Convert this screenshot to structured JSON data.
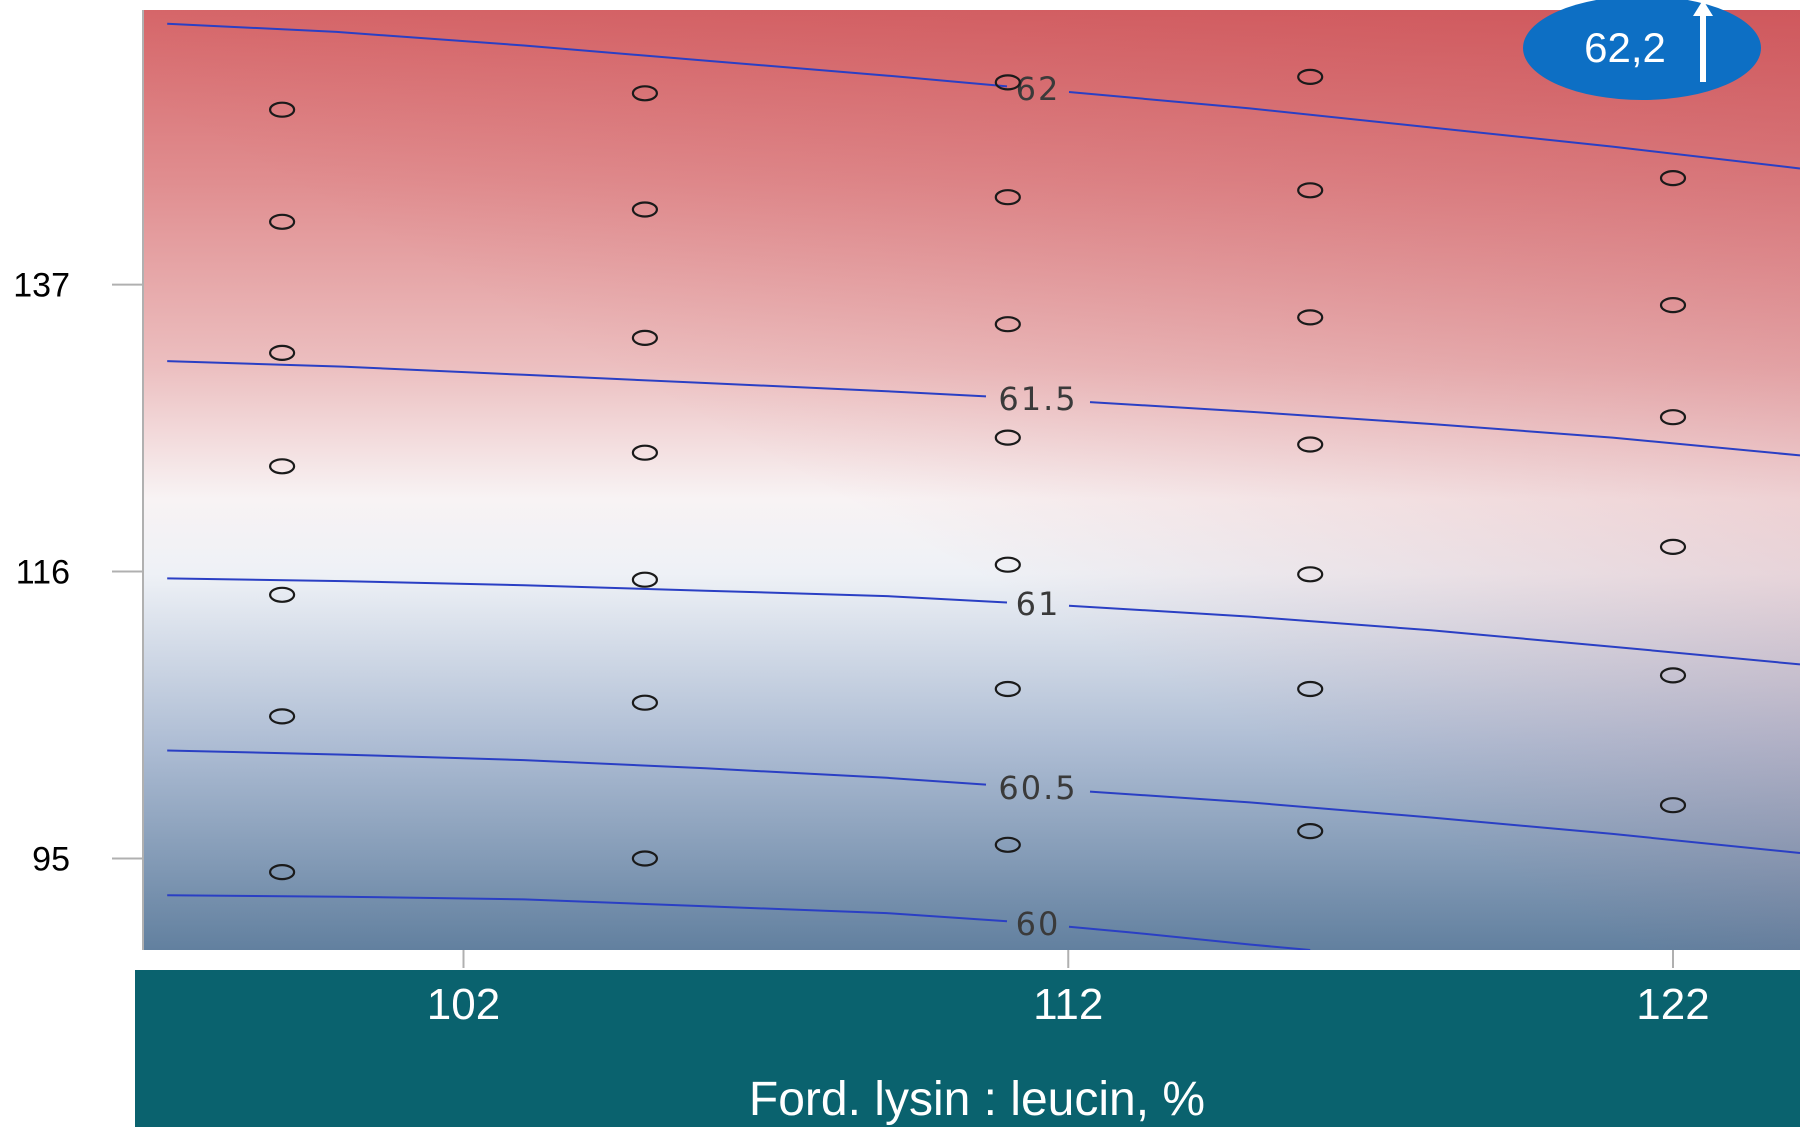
{
  "chart_data": {
    "type": "contour",
    "xlabel": "Ford. lysin : leucin, %",
    "ylabel": "",
    "x_ticks": [
      102,
      112,
      122
    ],
    "y_ticks": [
      95,
      116,
      137
    ],
    "xlim": [
      96.7,
      124.1
    ],
    "ylim": [
      88.3,
      157.1
    ],
    "color_scale": {
      "low": "#5b79a6",
      "mid": "#ffffff",
      "high": "#d46164"
    },
    "contour_color": "#2a3fc4",
    "contours": [
      {
        "level": "62",
        "points": [
          [
            97.1,
            156.1
          ],
          [
            99.9,
            155.5
          ],
          [
            103.0,
            154.5
          ],
          [
            106.0,
            153.4
          ],
          [
            109.0,
            152.3
          ],
          [
            112.0,
            151.1
          ],
          [
            115.0,
            149.9
          ],
          [
            118.0,
            148.5
          ],
          [
            121.0,
            147.1
          ],
          [
            124.1,
            145.5
          ]
        ]
      },
      {
        "level": "61.5",
        "points": [
          [
            97.1,
            131.4
          ],
          [
            100.0,
            131.0
          ],
          [
            103.0,
            130.4
          ],
          [
            106.0,
            129.8
          ],
          [
            109.0,
            129.2
          ],
          [
            112.0,
            128.5
          ],
          [
            115.0,
            127.7
          ],
          [
            118.0,
            126.8
          ],
          [
            121.0,
            125.8
          ],
          [
            124.1,
            124.5
          ]
        ]
      },
      {
        "level": "61",
        "points": [
          [
            97.1,
            115.5
          ],
          [
            100.0,
            115.3
          ],
          [
            103.0,
            115.0
          ],
          [
            106.0,
            114.6
          ],
          [
            109.0,
            114.2
          ],
          [
            112.0,
            113.5
          ],
          [
            115.0,
            112.7
          ],
          [
            118.0,
            111.7
          ],
          [
            121.0,
            110.5
          ],
          [
            124.1,
            109.2
          ]
        ]
      },
      {
        "level": "60.5",
        "points": [
          [
            97.1,
            102.9
          ],
          [
            100.0,
            102.6
          ],
          [
            103.0,
            102.2
          ],
          [
            106.0,
            101.6
          ],
          [
            109.0,
            100.9
          ],
          [
            112.0,
            100.0
          ],
          [
            115.0,
            99.1
          ],
          [
            118.0,
            98.0
          ],
          [
            121.0,
            96.8
          ],
          [
            124.1,
            95.4
          ]
        ]
      },
      {
        "level": "60",
        "points": [
          [
            97.1,
            92.3
          ],
          [
            100.0,
            92.2
          ],
          [
            103.0,
            92.0
          ],
          [
            106.0,
            91.5
          ],
          [
            109.0,
            91.0
          ],
          [
            111.0,
            90.4
          ],
          [
            113.0,
            89.6
          ],
          [
            115.0,
            88.7
          ],
          [
            116.0,
            88.3
          ]
        ]
      }
    ],
    "points": [
      [
        99.0,
        149.8
      ],
      [
        99.0,
        141.6
      ],
      [
        99.0,
        132.0
      ],
      [
        99.0,
        123.7
      ],
      [
        99.0,
        114.3
      ],
      [
        99.0,
        105.4
      ],
      [
        99.0,
        94.0
      ],
      [
        105.0,
        151.0
      ],
      [
        105.0,
        142.5
      ],
      [
        105.0,
        133.1
      ],
      [
        105.0,
        124.7
      ],
      [
        105.0,
        115.4
      ],
      [
        105.0,
        106.4
      ],
      [
        105.0,
        95.0
      ],
      [
        111.0,
        151.8
      ],
      [
        111.0,
        143.4
      ],
      [
        111.0,
        134.1
      ],
      [
        111.0,
        125.8
      ],
      [
        111.0,
        116.5
      ],
      [
        111.0,
        107.4
      ],
      [
        111.0,
        96.0
      ],
      [
        116.0,
        152.2
      ],
      [
        116.0,
        143.9
      ],
      [
        116.0,
        134.6
      ],
      [
        116.0,
        125.3
      ],
      [
        116.0,
        115.8
      ],
      [
        116.0,
        107.4
      ],
      [
        116.0,
        97.0
      ],
      [
        122.0,
        144.8
      ],
      [
        122.0,
        135.5
      ],
      [
        122.0,
        127.3
      ],
      [
        122.0,
        117.8
      ],
      [
        122.0,
        108.4
      ],
      [
        122.0,
        98.9
      ]
    ]
  },
  "badge": {
    "value": "62,2",
    "color": "#0d6fc4"
  },
  "xaxis_band_color": "#0a626e"
}
